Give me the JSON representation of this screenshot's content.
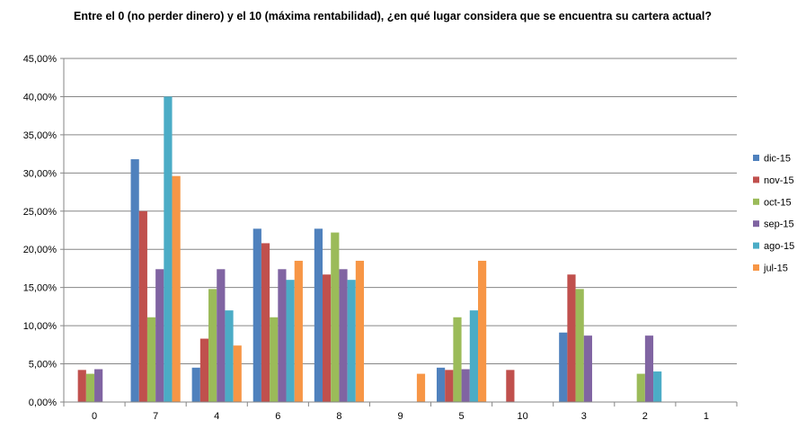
{
  "chart_data": {
    "type": "bar",
    "title": "Entre el 0 (no perder dinero) y el 10 (máxima rentabilidad), ¿en qué lugar considera que se encuentra su cartera actual?",
    "xlabel": "",
    "ylabel": "",
    "ylim": [
      0,
      45
    ],
    "ytick_step": 5,
    "ytick_labels": [
      "0,00%",
      "5,00%",
      "10,00%",
      "15,00%",
      "20,00%",
      "25,00%",
      "30,00%",
      "35,00%",
      "40,00%",
      "45,00%"
    ],
    "grid": true,
    "legend_position": "right",
    "categories": [
      "0",
      "7",
      "4",
      "6",
      "8",
      "9",
      "5",
      "10",
      "3",
      "2",
      "1"
    ],
    "series": [
      {
        "name": "dic-15",
        "color": "#4F81BD",
        "values": [
          0,
          31.8,
          4.5,
          22.7,
          22.7,
          0,
          4.5,
          0,
          9.1,
          0,
          0
        ]
      },
      {
        "name": "nov-15",
        "color": "#C0504D",
        "values": [
          4.2,
          25.0,
          8.3,
          20.8,
          16.7,
          0,
          4.2,
          4.2,
          16.7,
          0,
          0
        ]
      },
      {
        "name": "oct-15",
        "color": "#9BBB59",
        "values": [
          3.7,
          11.1,
          14.8,
          11.1,
          22.2,
          0,
          11.1,
          0,
          14.8,
          3.7,
          0
        ]
      },
      {
        "name": "sep-15",
        "color": "#8064A2",
        "values": [
          4.3,
          17.4,
          17.4,
          17.4,
          17.4,
          0,
          4.3,
          0,
          8.7,
          8.7,
          0
        ]
      },
      {
        "name": "ago-15",
        "color": "#4BACC6",
        "values": [
          0,
          40.0,
          12.0,
          16.0,
          16.0,
          0,
          12.0,
          0,
          0,
          4.0,
          0
        ]
      },
      {
        "name": "jul-15",
        "color": "#F79646",
        "values": [
          0,
          29.6,
          7.4,
          18.5,
          18.5,
          3.7,
          18.5,
          0,
          0,
          0,
          0
        ]
      }
    ]
  }
}
